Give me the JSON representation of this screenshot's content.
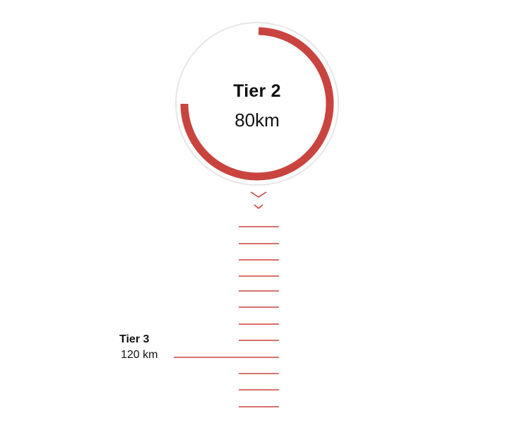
{
  "current_tier": {
    "name": "Tier 2",
    "distance": "80km",
    "progress_fraction": 0.75
  },
  "next_tier": {
    "name": "Tier 3",
    "distance": "120 km"
  },
  "colors": {
    "accent": "#c9443f",
    "ring_track": "#e6e6e6",
    "text": "#111111"
  },
  "icons": {
    "scroll_indicator": "double-chevron-down-icon"
  }
}
